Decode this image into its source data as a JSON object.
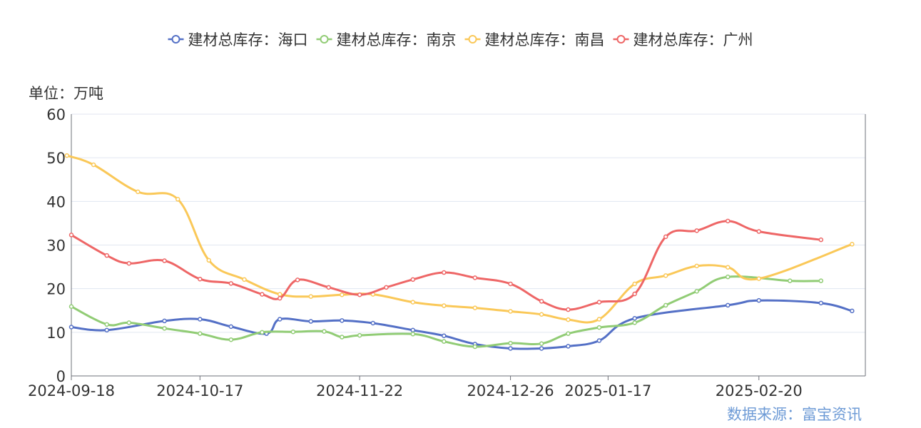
{
  "unit_label": "单位：万吨",
  "source_label": "数据来源：富宝资讯",
  "chart_data": {
    "type": "line",
    "title": "",
    "xlabel": "",
    "ylabel": "",
    "ylim": [
      0,
      60
    ],
    "yticks": [
      0,
      10,
      20,
      30,
      40,
      50,
      60
    ],
    "xticks": [
      "2024-09-18",
      "2024-10-17",
      "2024-11-22",
      "2024-12-26",
      "2025-01-17",
      "2025-02-20"
    ],
    "legend_position": "top-center",
    "grid": true,
    "x": [
      "2024-09-18",
      "2024-09-23",
      "2024-09-26",
      "2024-10-09",
      "2024-10-14",
      "2024-10-17",
      "2024-10-24",
      "2024-10-31",
      "2024-11-07",
      "2024-11-14",
      "2024-11-18",
      "2024-11-22",
      "2024-11-28",
      "2024-12-04",
      "2024-12-11",
      "2024-12-18",
      "2024-12-26",
      "2025-01-02",
      "2025-01-08",
      "2025-01-15",
      "2025-01-23",
      "2025-01-30",
      "2025-02-06",
      "2025-02-13",
      "2025-02-20",
      "2025-02-27",
      "2025-03-06",
      "2025-03-13"
    ],
    "series": [
      {
        "name": "建材总库存：海口",
        "color": "#5470c6",
        "points": [
          [
            "2024-09-18",
            11.2
          ],
          [
            "2024-09-26",
            10.5
          ],
          [
            "2024-10-09",
            12.6
          ],
          [
            "2024-10-17",
            13.0
          ],
          [
            "2024-10-24",
            11.3
          ],
          [
            "2024-11-01",
            9.7
          ],
          [
            "2024-11-04",
            13.0
          ],
          [
            "2024-11-11",
            12.5
          ],
          [
            "2024-11-18",
            12.7
          ],
          [
            "2024-11-25",
            12.1
          ],
          [
            "2024-12-04",
            10.5
          ],
          [
            "2024-12-11",
            9.2
          ],
          [
            "2024-12-18",
            7.3
          ],
          [
            "2024-12-26",
            6.3
          ],
          [
            "2025-01-02",
            6.3
          ],
          [
            "2025-01-08",
            6.8
          ],
          [
            "2025-01-15",
            8.1
          ],
          [
            "2025-01-23",
            13.2
          ],
          [
            "2025-02-13",
            16.2
          ],
          [
            "2025-02-20",
            17.3
          ],
          [
            "2025-03-06",
            16.7
          ],
          [
            "2025-03-13",
            14.9
          ]
        ]
      },
      {
        "name": "建材总库存：南京",
        "color": "#91cc75",
        "points": [
          [
            "2024-09-18",
            15.9
          ],
          [
            "2024-09-26",
            11.8
          ],
          [
            "2024-10-01",
            12.2
          ],
          [
            "2024-10-09",
            10.9
          ],
          [
            "2024-10-17",
            9.7
          ],
          [
            "2024-10-24",
            8.3
          ],
          [
            "2024-10-31",
            10.0
          ],
          [
            "2024-11-07",
            10.1
          ],
          [
            "2024-11-14",
            10.2
          ],
          [
            "2024-11-18",
            8.9
          ],
          [
            "2024-11-22",
            9.3
          ],
          [
            "2024-12-04",
            9.6
          ],
          [
            "2024-12-11",
            7.9
          ],
          [
            "2024-12-18",
            6.7
          ],
          [
            "2024-12-26",
            7.5
          ],
          [
            "2025-01-02",
            7.4
          ],
          [
            "2025-01-08",
            9.7
          ],
          [
            "2025-01-15",
            11.1
          ],
          [
            "2025-01-23",
            12.2
          ],
          [
            "2025-01-30",
            16.2
          ],
          [
            "2025-02-06",
            19.4
          ],
          [
            "2025-02-13",
            22.7
          ],
          [
            "2025-02-27",
            21.8
          ],
          [
            "2025-03-06",
            21.8
          ]
        ]
      },
      {
        "name": "建材总库存：南昌",
        "color": "#fac858",
        "points": [
          [
            "2024-09-17",
            50.5
          ],
          [
            "2024-09-23",
            48.4
          ],
          [
            "2024-10-03",
            42.2
          ],
          [
            "2024-10-12",
            40.5
          ],
          [
            "2024-10-19",
            26.5
          ],
          [
            "2024-10-27",
            22.1
          ],
          [
            "2024-11-04",
            18.7
          ],
          [
            "2024-11-11",
            18.2
          ],
          [
            "2024-11-18",
            18.6
          ],
          [
            "2024-11-25",
            18.7
          ],
          [
            "2024-12-04",
            16.9
          ],
          [
            "2024-12-11",
            16.1
          ],
          [
            "2024-12-18",
            15.6
          ],
          [
            "2024-12-26",
            14.8
          ],
          [
            "2025-01-02",
            14.1
          ],
          [
            "2025-01-08",
            12.9
          ],
          [
            "2025-01-15",
            13.0
          ],
          [
            "2025-01-23",
            21.1
          ],
          [
            "2025-01-30",
            23.0
          ],
          [
            "2025-02-06",
            25.2
          ],
          [
            "2025-02-13",
            24.9
          ],
          [
            "2025-02-20",
            22.3
          ],
          [
            "2025-03-13",
            30.2
          ]
        ]
      },
      {
        "name": "建材总库存：广州",
        "color": "#ee6666",
        "points": [
          [
            "2024-09-18",
            32.3
          ],
          [
            "2024-09-26",
            27.6
          ],
          [
            "2024-10-01",
            25.8
          ],
          [
            "2024-10-09",
            26.4
          ],
          [
            "2024-10-17",
            22.2
          ],
          [
            "2024-10-24",
            21.2
          ],
          [
            "2024-10-31",
            18.7
          ],
          [
            "2024-11-04",
            17.8
          ],
          [
            "2024-11-08",
            22.0
          ],
          [
            "2024-11-15",
            20.3
          ],
          [
            "2024-11-22",
            18.6
          ],
          [
            "2024-11-28",
            20.3
          ],
          [
            "2024-12-04",
            22.1
          ],
          [
            "2024-12-11",
            23.7
          ],
          [
            "2024-12-18",
            22.5
          ],
          [
            "2024-12-26",
            21.1
          ],
          [
            "2025-01-02",
            17.1
          ],
          [
            "2025-01-08",
            15.2
          ],
          [
            "2025-01-15",
            16.9
          ],
          [
            "2025-01-23",
            18.8
          ],
          [
            "2025-01-30",
            31.9
          ],
          [
            "2025-02-06",
            33.3
          ],
          [
            "2025-02-13",
            35.5
          ],
          [
            "2025-02-20",
            33.1
          ],
          [
            "2025-03-06",
            31.2
          ]
        ]
      }
    ]
  }
}
